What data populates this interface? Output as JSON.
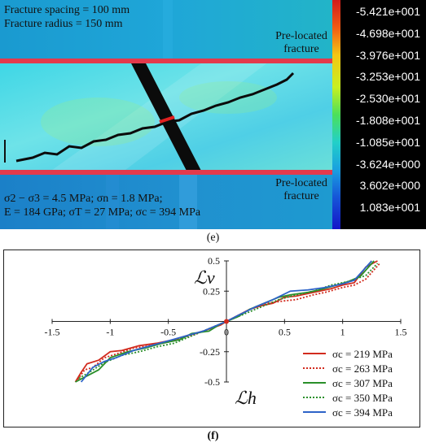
{
  "panel_e": {
    "fracture_spacing": "Fracture spacing = 100 mm",
    "fracture_radius": "Fracture radius = 150 mm",
    "preloc_top": [
      "Pre-located",
      "fracture"
    ],
    "preloc_bottom": [
      "Pre-located",
      "fracture"
    ],
    "stress_line1": "σ2 − σ3 = 4.5 MPa; σn = 1.8 MPa;",
    "stress_line2": "E = 184 GPa; σT = 27 MPa; σc = 394 MPa",
    "colorbar_labels": [
      "-5.421e+001",
      "-4.698e+001",
      "-3.976e+001",
      "-3.253e+001",
      "-2.530e+001",
      "-1.808e+001",
      "-1.085e+001",
      "-3.624e+000",
      "3.602e+000",
      "1.083e+001"
    ],
    "caption": "(e)"
  },
  "panel_f": {
    "caption": "(f)",
    "chart_data": {
      "type": "line",
      "xlabel": "ℒh",
      "ylabel": "ℒv",
      "xlim": [
        -1.5,
        1.5
      ],
      "ylim": [
        -0.5,
        0.5
      ],
      "x_ticks": [
        "-1.5",
        "-1",
        "-0.5",
        "0",
        "0.5",
        "1",
        "1.5"
      ],
      "y_ticks": [
        "0.5",
        "0.25",
        "0",
        "-0.25",
        "-0.5"
      ],
      "legend_position": "bottom-right",
      "series": [
        {
          "name": "σc = 219 MPa",
          "color": "#d22b1e",
          "style": "solid",
          "x": [
            -1.3,
            -1.25,
            -1.2,
            -1.1,
            -1.0,
            -0.9,
            -0.75,
            -0.6,
            -0.45,
            -0.35,
            -0.2,
            -0.05,
            0,
            0.1,
            0.2,
            0.3,
            0.4,
            0.5,
            0.6,
            0.7,
            0.8,
            0.9,
            1.0,
            1.1,
            1.2,
            1.3
          ],
          "y": [
            -0.5,
            -0.42,
            -0.35,
            -0.32,
            -0.25,
            -0.24,
            -0.2,
            -0.18,
            -0.15,
            -0.12,
            -0.08,
            -0.03,
            0,
            0.05,
            0.1,
            0.13,
            0.15,
            0.2,
            0.21,
            0.23,
            0.25,
            0.27,
            0.3,
            0.32,
            0.45,
            0.5
          ]
        },
        {
          "name": "σc = 263 MPa",
          "color": "#d22b1e",
          "style": "dotted",
          "x": [
            -1.28,
            -1.22,
            -1.15,
            -1.05,
            -0.95,
            -0.8,
            -0.65,
            -0.5,
            -0.4,
            -0.25,
            -0.1,
            0,
            0.1,
            0.25,
            0.35,
            0.5,
            0.6,
            0.75,
            0.85,
            1.0,
            1.1,
            1.2,
            1.32
          ],
          "y": [
            -0.48,
            -0.4,
            -0.38,
            -0.3,
            -0.27,
            -0.22,
            -0.2,
            -0.17,
            -0.14,
            -0.1,
            -0.04,
            0,
            0.05,
            0.12,
            0.15,
            0.17,
            0.18,
            0.22,
            0.24,
            0.28,
            0.3,
            0.35,
            0.48
          ]
        },
        {
          "name": "σc = 307 MPa",
          "color": "#2a8f2a",
          "style": "solid",
          "x": [
            -1.3,
            -1.2,
            -1.1,
            -1.0,
            -0.85,
            -0.7,
            -0.55,
            -0.4,
            -0.3,
            -0.15,
            -0.05,
            0,
            0.1,
            0.2,
            0.3,
            0.45,
            0.55,
            0.7,
            0.8,
            0.95,
            1.05,
            1.15,
            1.27
          ],
          "y": [
            -0.5,
            -0.45,
            -0.4,
            -0.3,
            -0.25,
            -0.22,
            -0.18,
            -0.15,
            -0.1,
            -0.08,
            -0.02,
            0,
            0.04,
            0.1,
            0.14,
            0.2,
            0.22,
            0.24,
            0.26,
            0.3,
            0.33,
            0.37,
            0.5
          ]
        },
        {
          "name": "σc = 350 MPa",
          "color": "#2a8f2a",
          "style": "dotted",
          "x": [
            -1.27,
            -1.18,
            -1.05,
            -0.9,
            -0.75,
            -0.6,
            -0.45,
            -0.3,
            -0.15,
            0,
            0.15,
            0.3,
            0.45,
            0.6,
            0.75,
            0.9,
            1.05,
            1.2,
            1.3
          ],
          "y": [
            -0.47,
            -0.42,
            -0.34,
            -0.28,
            -0.25,
            -0.21,
            -0.18,
            -0.12,
            -0.06,
            0,
            0.06,
            0.12,
            0.18,
            0.22,
            0.25,
            0.3,
            0.33,
            0.38,
            0.48
          ]
        },
        {
          "name": "σc = 394 MPa",
          "color": "#2d63c8",
          "style": "solid",
          "x": [
            -1.25,
            -1.15,
            -1.05,
            -0.95,
            -0.8,
            -0.65,
            -0.5,
            -0.35,
            -0.2,
            -0.05,
            0,
            0.1,
            0.25,
            0.4,
            0.55,
            0.7,
            0.85,
            1.0,
            1.1,
            1.25
          ],
          "y": [
            -0.5,
            -0.38,
            -0.33,
            -0.3,
            -0.24,
            -0.2,
            -0.16,
            -0.12,
            -0.08,
            -0.02,
            0,
            0.05,
            0.12,
            0.18,
            0.25,
            0.26,
            0.28,
            0.31,
            0.34,
            0.5
          ]
        }
      ]
    }
  }
}
